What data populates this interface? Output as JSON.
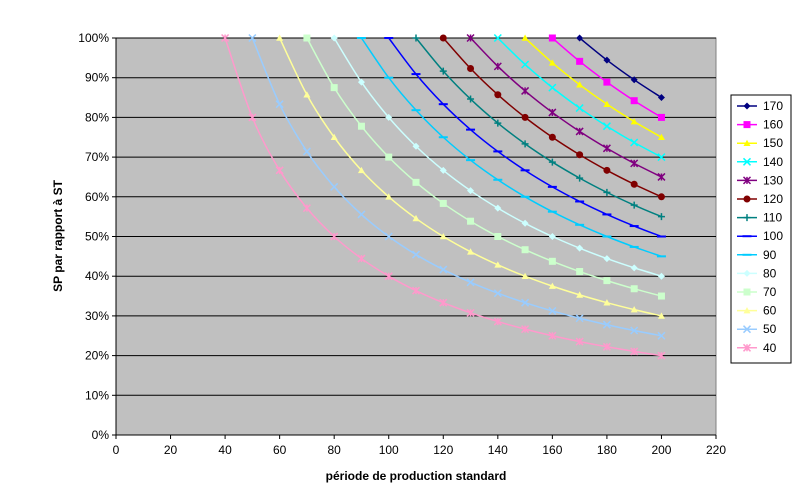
{
  "chart_data": {
    "type": "line",
    "title": "",
    "xlabel": "période de production standard",
    "ylabel": "SP par rapport à ST",
    "xlim": [
      0,
      220
    ],
    "ylim": [
      0,
      1
    ],
    "x_ticks": [
      0,
      20,
      40,
      60,
      80,
      100,
      120,
      140,
      160,
      180,
      200,
      220
    ],
    "y_ticks": [
      0,
      0.1,
      0.2,
      0.3,
      0.4,
      0.5,
      0.6,
      0.7,
      0.8,
      0.9,
      1.0
    ],
    "x_tick_labels": [
      "0",
      "20",
      "40",
      "60",
      "80",
      "100",
      "120",
      "140",
      "160",
      "180",
      "200",
      "220"
    ],
    "y_tick_labels": [
      "0%",
      "10%",
      "20%",
      "30%",
      "40%",
      "50%",
      "60%",
      "70%",
      "80%",
      "90%",
      "100%"
    ],
    "grid": "horizontal",
    "plot_background": "#C0C0C0",
    "legend_position": "right",
    "x": [
      40,
      50,
      60,
      70,
      80,
      90,
      100,
      110,
      120,
      130,
      140,
      150,
      160,
      170,
      180,
      190,
      200
    ],
    "series": [
      {
        "name": "170",
        "values": [
          null,
          null,
          null,
          null,
          null,
          null,
          null,
          null,
          null,
          null,
          null,
          null,
          null,
          1.0,
          0.9444,
          0.8947,
          0.85
        ],
        "color": "#000080",
        "marker": "diamond"
      },
      {
        "name": "160",
        "values": [
          null,
          null,
          null,
          null,
          null,
          null,
          null,
          null,
          null,
          null,
          null,
          null,
          1.0,
          0.9412,
          0.8889,
          0.8421,
          0.8
        ],
        "color": "#FF00FF",
        "marker": "square"
      },
      {
        "name": "150",
        "values": [
          null,
          null,
          null,
          null,
          null,
          null,
          null,
          null,
          null,
          null,
          null,
          1.0,
          0.9375,
          0.8824,
          0.8333,
          0.7895,
          0.75
        ],
        "color": "#FFFF00",
        "marker": "triangle"
      },
      {
        "name": "140",
        "values": [
          null,
          null,
          null,
          null,
          null,
          null,
          null,
          null,
          null,
          null,
          1.0,
          0.9333,
          0.875,
          0.8235,
          0.7778,
          0.7368,
          0.7
        ],
        "color": "#00FFFF",
        "marker": "x"
      },
      {
        "name": "130",
        "values": [
          null,
          null,
          null,
          null,
          null,
          null,
          null,
          null,
          null,
          1.0,
          0.9286,
          0.8667,
          0.8125,
          0.7647,
          0.7222,
          0.6842,
          0.65
        ],
        "color": "#800080",
        "marker": "star"
      },
      {
        "name": "120",
        "values": [
          null,
          null,
          null,
          null,
          null,
          null,
          null,
          null,
          1.0,
          0.9231,
          0.8571,
          0.8,
          0.75,
          0.7059,
          0.6667,
          0.6316,
          0.6
        ],
        "color": "#800000",
        "marker": "circle"
      },
      {
        "name": "110",
        "values": [
          null,
          null,
          null,
          null,
          null,
          null,
          null,
          1.0,
          0.9167,
          0.8462,
          0.7857,
          0.7333,
          0.6875,
          0.6471,
          0.6111,
          0.5789,
          0.55
        ],
        "color": "#008080",
        "marker": "plus"
      },
      {
        "name": "100",
        "values": [
          null,
          null,
          null,
          null,
          null,
          null,
          1.0,
          0.9091,
          0.8333,
          0.7692,
          0.7143,
          0.6667,
          0.625,
          0.5882,
          0.5556,
          0.5263,
          0.5
        ],
        "color": "#0000FF",
        "marker": "dash"
      },
      {
        "name": "90",
        "values": [
          null,
          null,
          null,
          null,
          null,
          1.0,
          0.9,
          0.8182,
          0.75,
          0.6923,
          0.6429,
          0.6,
          0.5625,
          0.5294,
          0.5,
          0.4737,
          0.45
        ],
        "color": "#00CCFF",
        "marker": "dash"
      },
      {
        "name": "80",
        "values": [
          null,
          null,
          null,
          null,
          1.0,
          0.8889,
          0.8,
          0.7273,
          0.6667,
          0.6154,
          0.5714,
          0.5333,
          0.5,
          0.4706,
          0.4444,
          0.4211,
          0.4
        ],
        "color": "#CCFFFF",
        "marker": "diamond"
      },
      {
        "name": "70",
        "values": [
          null,
          null,
          null,
          1.0,
          0.875,
          0.7778,
          0.7,
          0.6364,
          0.5833,
          0.5385,
          0.5,
          0.4667,
          0.4375,
          0.4118,
          0.3889,
          0.3684,
          0.35
        ],
        "color": "#CCFFCC",
        "marker": "square"
      },
      {
        "name": "60",
        "values": [
          null,
          null,
          1.0,
          0.8571,
          0.75,
          0.6667,
          0.6,
          0.5455,
          0.5,
          0.4615,
          0.4286,
          0.4,
          0.375,
          0.3529,
          0.3333,
          0.3158,
          0.3
        ],
        "color": "#FFFF99",
        "marker": "triangle"
      },
      {
        "name": "50",
        "values": [
          null,
          1.0,
          0.8333,
          0.7143,
          0.625,
          0.5556,
          0.5,
          0.4545,
          0.4167,
          0.3846,
          0.3571,
          0.3333,
          0.3125,
          0.2941,
          0.2778,
          0.2632,
          0.25
        ],
        "color": "#99CCFF",
        "marker": "x"
      },
      {
        "name": "40",
        "values": [
          1.0,
          0.8,
          0.6667,
          0.5714,
          0.5,
          0.4444,
          0.4,
          0.3636,
          0.3333,
          0.3077,
          0.2857,
          0.2667,
          0.25,
          0.2353,
          0.2222,
          0.2105,
          0.2
        ],
        "color": "#FF99CC",
        "marker": "star"
      }
    ]
  }
}
